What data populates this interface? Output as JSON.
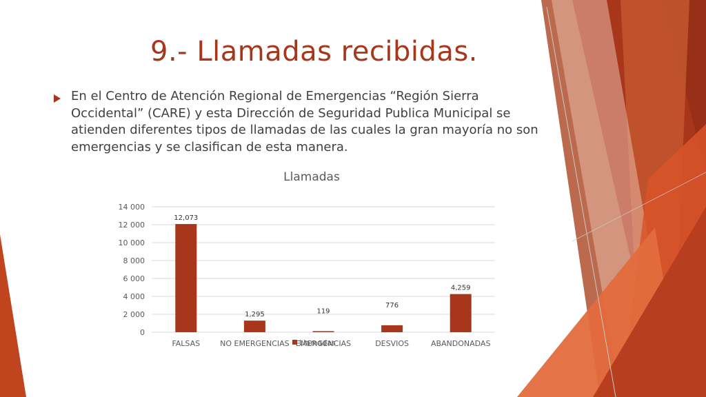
{
  "slide": {
    "title": "9.- Llamadas recibidas.",
    "bullet": "En el Centro de Atención Regional de Emergencias “Región Sierra Occidental” (CARE) y esta Dirección de Seguridad Publica Municipal se atienden diferentes tipos de llamadas de las cuales la gran mayoría no son emergencias y se clasifican de esta manera."
  },
  "colors": {
    "accent": "#a8361b",
    "bar": "#a8361b",
    "text": "#404040",
    "gridline": "#d9d9d9"
  },
  "chart_data": {
    "type": "bar",
    "title": "Llamadas",
    "categories": [
      "FALSAS",
      "NO EMERGENCIAS",
      "EMERGENCIAS",
      "DESVIOS",
      "ABANDONADAS"
    ],
    "series": [
      {
        "name": "Llamadas",
        "values": [
          12073,
          1295,
          119,
          776,
          4259
        ]
      }
    ],
    "data_labels": [
      "12,073",
      "1,295",
      "119",
      "776",
      "4,259"
    ],
    "y_ticks": [
      "0",
      "2 000",
      "4 000",
      "6 000",
      "8 000",
      "10 000",
      "12 000",
      "14 000"
    ],
    "ylim": [
      0,
      14000
    ],
    "grid": true,
    "legend": "bottom"
  }
}
